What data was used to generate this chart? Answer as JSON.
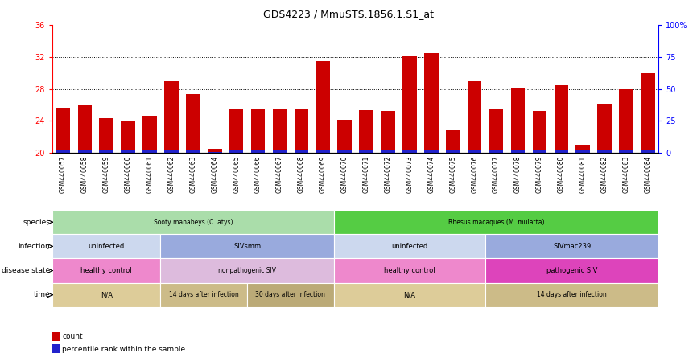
{
  "title": "GDS4223 / MmuSTS.1856.1.S1_at",
  "samples": [
    "GSM440057",
    "GSM440058",
    "GSM440059",
    "GSM440060",
    "GSM440061",
    "GSM440062",
    "GSM440063",
    "GSM440064",
    "GSM440065",
    "GSM440066",
    "GSM440067",
    "GSM440068",
    "GSM440069",
    "GSM440070",
    "GSM440071",
    "GSM440072",
    "GSM440073",
    "GSM440074",
    "GSM440075",
    "GSM440076",
    "GSM440077",
    "GSM440078",
    "GSM440079",
    "GSM440080",
    "GSM440081",
    "GSM440082",
    "GSM440083",
    "GSM440084"
  ],
  "count_values": [
    25.6,
    26.0,
    24.3,
    24.0,
    24.6,
    29.0,
    27.4,
    20.5,
    25.5,
    25.5,
    25.5,
    25.4,
    31.5,
    24.1,
    25.3,
    25.2,
    32.1,
    32.5,
    22.8,
    29.0,
    25.5,
    28.2,
    25.2,
    28.5,
    21.0,
    26.1,
    28.0,
    30.0
  ],
  "percentile_values": [
    0.35,
    0.35,
    0.35,
    0.35,
    0.35,
    0.4,
    0.35,
    0.15,
    0.35,
    0.35,
    0.35,
    0.4,
    0.4,
    0.35,
    0.35,
    0.35,
    0.35,
    0.35,
    0.35,
    0.35,
    0.35,
    0.35,
    0.35,
    0.35,
    0.35,
    0.35,
    0.35,
    0.35
  ],
  "y_min": 20,
  "y_max": 36,
  "y_ticks": [
    20,
    24,
    28,
    32,
    36
  ],
  "right_y_ticks": [
    0,
    25,
    50,
    75,
    100
  ],
  "right_y_tick_positions": [
    20,
    24,
    28,
    32,
    36
  ],
  "bar_color": "#cc0000",
  "blue_color": "#2222cc",
  "dotted_line_y": [
    24,
    28,
    32
  ],
  "annotation_rows": [
    {
      "label": "species",
      "segments": [
        {
          "text": "Sooty manabeys (C. atys)",
          "start": 0,
          "end": 13,
          "color": "#aaddaa"
        },
        {
          "text": "Rhesus macaques (M. mulatta)",
          "start": 13,
          "end": 28,
          "color": "#55cc44"
        }
      ]
    },
    {
      "label": "infection",
      "segments": [
        {
          "text": "uninfected",
          "start": 0,
          "end": 5,
          "color": "#ccd8ee"
        },
        {
          "text": "SIVsmm",
          "start": 5,
          "end": 13,
          "color": "#99aadd"
        },
        {
          "text": "uninfected",
          "start": 13,
          "end": 20,
          "color": "#ccd8ee"
        },
        {
          "text": "SIVmac239",
          "start": 20,
          "end": 28,
          "color": "#99aadd"
        }
      ]
    },
    {
      "label": "disease state",
      "segments": [
        {
          "text": "healthy control",
          "start": 0,
          "end": 5,
          "color": "#ee88cc"
        },
        {
          "text": "nonpathogenic SIV",
          "start": 5,
          "end": 13,
          "color": "#ddbbdd"
        },
        {
          "text": "healthy control",
          "start": 13,
          "end": 20,
          "color": "#ee88cc"
        },
        {
          "text": "pathogenic SIV",
          "start": 20,
          "end": 28,
          "color": "#dd44bb"
        }
      ]
    },
    {
      "label": "time",
      "segments": [
        {
          "text": "N/A",
          "start": 0,
          "end": 5,
          "color": "#ddcc99"
        },
        {
          "text": "14 days after infection",
          "start": 5,
          "end": 9,
          "color": "#ccbb88"
        },
        {
          "text": "30 days after infection",
          "start": 9,
          "end": 13,
          "color": "#bbaa77"
        },
        {
          "text": "N/A",
          "start": 13,
          "end": 20,
          "color": "#ddcc99"
        },
        {
          "text": "14 days after infection",
          "start": 20,
          "end": 28,
          "color": "#ccbb88"
        }
      ]
    }
  ]
}
